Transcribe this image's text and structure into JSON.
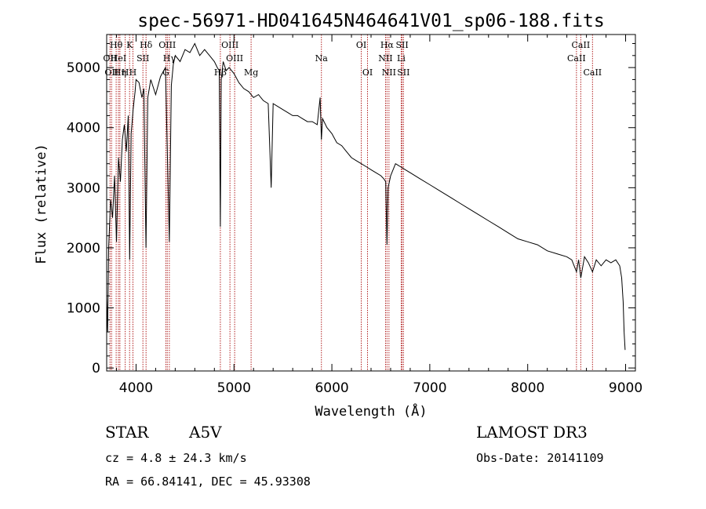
{
  "chart_data": {
    "type": "line",
    "title": "spec-56971-HD041645N464641V01_sp06-188.fits",
    "xlabel": "Wavelength (Å)",
    "ylabel": "Flux (relative)",
    "xlim": [
      3700,
      9100
    ],
    "ylim": [
      -50,
      5550
    ],
    "xticks": [
      4000,
      5000,
      6000,
      7000,
      8000,
      9000
    ],
    "yticks": [
      0,
      1000,
      2000,
      3000,
      4000,
      5000
    ],
    "series": [
      {
        "name": "spectrum",
        "x": [
          3700,
          3710,
          3720,
          3740,
          3760,
          3780,
          3800,
          3820,
          3840,
          3860,
          3880,
          3900,
          3920,
          3935,
          3950,
          3970,
          3990,
          4000,
          4030,
          4060,
          4080,
          4101,
          4120,
          4150,
          4200,
          4250,
          4300,
          4340,
          4360,
          4380,
          4400,
          4450,
          4500,
          4550,
          4600,
          4650,
          4700,
          4750,
          4800,
          4830,
          4850,
          4861,
          4870,
          4890,
          4920,
          4950,
          5000,
          5050,
          5100,
          5150,
          5200,
          5250,
          5300,
          5350,
          5380,
          5400,
          5450,
          5500,
          5550,
          5600,
          5650,
          5700,
          5750,
          5800,
          5850,
          5880,
          5893,
          5905,
          5950,
          6000,
          6050,
          6100,
          6150,
          6200,
          6250,
          6300,
          6350,
          6400,
          6450,
          6500,
          6530,
          6550,
          6563,
          6575,
          6600,
          6650,
          6700,
          6750,
          6800,
          6900,
          7000,
          7100,
          7200,
          7300,
          7400,
          7500,
          7600,
          7700,
          7800,
          7900,
          8000,
          8100,
          8200,
          8300,
          8400,
          8450,
          8498,
          8520,
          8542,
          8580,
          8620,
          8662,
          8700,
          8750,
          8800,
          8850,
          8900,
          8940,
          8960,
          8975,
          8985,
          8995
        ],
        "values": [
          1200,
          600,
          2000,
          2800,
          2500,
          3200,
          2100,
          3500,
          3100,
          3800,
          4050,
          3600,
          4200,
          1800,
          3900,
          4300,
          4600,
          4800,
          4750,
          4500,
          4650,
          2000,
          4500,
          4800,
          4550,
          4850,
          5000,
          2100,
          4700,
          5050,
          5200,
          5100,
          5300,
          5250,
          5400,
          5200,
          5300,
          5200,
          5100,
          5000,
          4950,
          2350,
          4800,
          5100,
          4950,
          5000,
          4900,
          4750,
          4650,
          4600,
          4500,
          4550,
          4450,
          4400,
          3000,
          4400,
          4350,
          4300,
          4250,
          4200,
          4200,
          4150,
          4100,
          4100,
          4050,
          4500,
          3800,
          4150,
          4000,
          3900,
          3750,
          3700,
          3600,
          3500,
          3450,
          3400,
          3350,
          3300,
          3250,
          3200,
          3150,
          3100,
          2050,
          3000,
          3200,
          3400,
          3350,
          3300,
          3250,
          3150,
          3050,
          2950,
          2850,
          2750,
          2650,
          2550,
          2450,
          2350,
          2250,
          2150,
          2100,
          2050,
          1950,
          1900,
          1850,
          1800,
          1600,
          1800,
          1500,
          1850,
          1750,
          1600,
          1800,
          1700,
          1800,
          1750,
          1800,
          1700,
          1500,
          1100,
          600,
          300
        ]
      }
    ],
    "lines": [
      {
        "wave": 3734,
        "labels": [
          "OII"
        ],
        "tier": 2
      },
      {
        "wave": 3750,
        "labels": [
          "OII"
        ],
        "tier": 3
      },
      {
        "wave": 3797,
        "labels": [
          "Hθ"
        ],
        "tier": 1
      },
      {
        "wave": 3820,
        "labels": [
          "HeI"
        ],
        "tier": 2
      },
      {
        "wave": 3835,
        "labels": [
          "Hη"
        ],
        "tier": 3
      },
      {
        "wave": 3889,
        "labels": [
          "H"
        ],
        "tier": 3
      },
      {
        "wave": 3934,
        "labels": [
          "K"
        ],
        "tier": 1
      },
      {
        "wave": 3968,
        "labels": [
          "H"
        ],
        "tier": 3
      },
      {
        "wave": 4070,
        "labels": [
          "SII"
        ],
        "tier": 2
      },
      {
        "wave": 4102,
        "labels": [
          "Hδ"
        ],
        "tier": 1
      },
      {
        "wave": 4304,
        "labels": [
          "G"
        ],
        "tier": 3
      },
      {
        "wave": 4319,
        "labels": [
          "OIII"
        ],
        "tier": 1
      },
      {
        "wave": 4340,
        "labels": [
          "Hγ"
        ],
        "tier": 2
      },
      {
        "wave": 4861,
        "labels": [
          "Hβ"
        ],
        "tier": 3
      },
      {
        "wave": 4959,
        "labels": [
          "OIII"
        ],
        "tier": 1
      },
      {
        "wave": 5007,
        "labels": [
          "OIII"
        ],
        "tier": 2
      },
      {
        "wave": 5175,
        "labels": [
          "Mg"
        ],
        "tier": 3
      },
      {
        "wave": 5893,
        "labels": [
          "Na"
        ],
        "tier": 2
      },
      {
        "wave": 6300,
        "labels": [
          "OI"
        ],
        "tier": 1
      },
      {
        "wave": 6364,
        "labels": [
          "OI"
        ],
        "tier": 3
      },
      {
        "wave": 6548,
        "labels": [
          "NII"
        ],
        "tier": 2
      },
      {
        "wave": 6563,
        "labels": [
          "Hα"
        ],
        "tier": 1
      },
      {
        "wave": 6583,
        "labels": [
          "NII"
        ],
        "tier": 3
      },
      {
        "wave": 6708,
        "labels": [
          "Li"
        ],
        "tier": 2
      },
      {
        "wave": 6717,
        "labels": [
          "SII"
        ],
        "tier": 1
      },
      {
        "wave": 6731,
        "labels": [
          "SII"
        ],
        "tier": 3
      },
      {
        "wave": 8498,
        "labels": [
          "CaII"
        ],
        "tier": 2
      },
      {
        "wave": 8542,
        "labels": [
          "CaII"
        ],
        "tier": 1
      },
      {
        "wave": 8662,
        "labels": [
          "CaII"
        ],
        "tier": 3
      }
    ],
    "line_color": "#b22222"
  },
  "info": {
    "object_class": "STAR",
    "subclass": "A5V",
    "survey": "LAMOST DR3",
    "cz": "cz = 4.8 ± 24.3 km/s",
    "obs_date": "Obs-Date: 20141109",
    "coords": "RA =  66.84141, DEC =  45.93308"
  }
}
